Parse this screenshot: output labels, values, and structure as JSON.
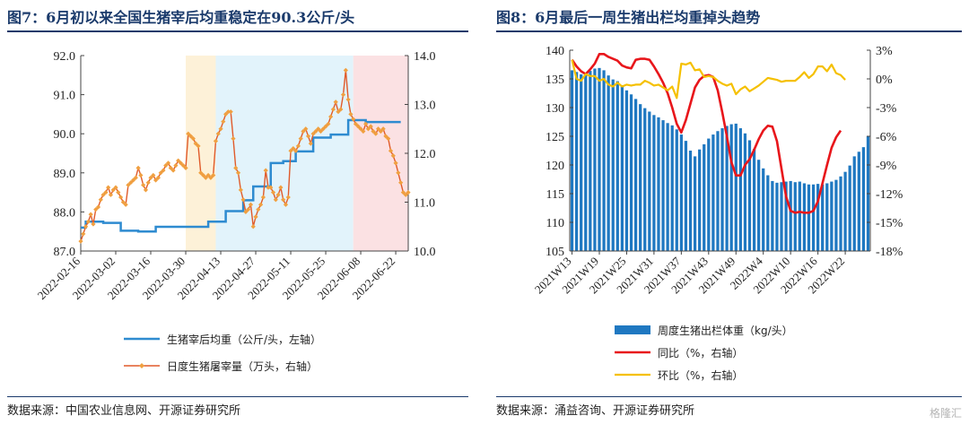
{
  "left": {
    "title": "图7：6月初以来全国生猪宰后均重稳定在90.3公斤/头",
    "source": "数据来源：中国农业信息网、开源证券研究所"
  },
  "right": {
    "title": "图8：6月最后一周生猪出栏均重掉头趋势",
    "source": "数据来源：涌益咨询、开源证券研究所",
    "watermark": "格隆汇"
  },
  "chart_data": [
    {
      "type": "line",
      "title": "图7：6月初以来全国生猪宰后均重稳定在90.3公斤/头",
      "xlabel": "",
      "x_ticks": [
        "2022-02-16",
        "2022-03-02",
        "2022-03-16",
        "2022-03-30",
        "2022-04-13",
        "2022-04-27",
        "2022-05-11",
        "2022-05-25",
        "2022-06-08",
        "2022-06-22"
      ],
      "x_range_days": [
        0,
        131
      ],
      "y_left": {
        "min": 87.0,
        "max": 92.0,
        "ticks": [
          "87.0",
          "88.0",
          "89.0",
          "90.0",
          "91.0",
          "92.0"
        ]
      },
      "y_right": {
        "min": 10.0,
        "max": 14.0,
        "ticks": [
          "10.0",
          "11.0",
          "12.0",
          "13.0",
          "14.0"
        ]
      },
      "bands": [
        {
          "from": "2022-03-30",
          "to": "2022-04-11",
          "color": "#fdf1d8"
        },
        {
          "from": "2022-04-11",
          "to": "2022-06-05",
          "color": "#e2f3fb"
        },
        {
          "from": "2022-06-05",
          "to": "2022-06-27",
          "color": "#fbe1e3"
        }
      ],
      "series": [
        {
          "name": "生猪宰后均重（公斤/头，左轴）",
          "axis": "left",
          "color": "#2e8bd0",
          "step": true,
          "points": [
            [
              "2022-02-16",
              87.6
            ],
            [
              "2022-02-18",
              87.75
            ],
            [
              "2022-02-25",
              87.72
            ],
            [
              "2022-03-04",
              87.52
            ],
            [
              "2022-03-11",
              87.5
            ],
            [
              "2022-03-18",
              87.62
            ],
            [
              "2022-03-25",
              87.62
            ],
            [
              "2022-04-01",
              87.62
            ],
            [
              "2022-04-08",
              87.75
            ],
            [
              "2022-04-15",
              88.02
            ],
            [
              "2022-04-22",
              88.3
            ],
            [
              "2022-04-26",
              88.65
            ],
            [
              "2022-05-03",
              89.25
            ],
            [
              "2022-05-08",
              89.3
            ],
            [
              "2022-05-13",
              89.55
            ],
            [
              "2022-05-20",
              89.9
            ],
            [
              "2022-05-27",
              89.98
            ],
            [
              "2022-06-03",
              90.35
            ],
            [
              "2022-06-10",
              90.3
            ],
            [
              "2022-06-24",
              90.3
            ]
          ]
        },
        {
          "name": "日度生猪屠宰量（万头，右轴）",
          "axis": "right",
          "color": "#e05a2a",
          "marker": "#f0a040",
          "points": [
            [
              "2022-02-16",
              10.2
            ],
            [
              "2022-02-17",
              10.35
            ],
            [
              "2022-02-18",
              10.5
            ],
            [
              "2022-02-19",
              10.6
            ],
            [
              "2022-02-20",
              10.75
            ],
            [
              "2022-02-21",
              10.55
            ],
            [
              "2022-02-22",
              10.85
            ],
            [
              "2022-02-23",
              10.9
            ],
            [
              "2022-02-24",
              11.05
            ],
            [
              "2022-02-25",
              11.15
            ],
            [
              "2022-02-26",
              11.2
            ],
            [
              "2022-02-27",
              11.3
            ],
            [
              "2022-02-28",
              11.15
            ],
            [
              "2022-03-01",
              11.25
            ],
            [
              "2022-03-02",
              11.3
            ],
            [
              "2022-03-03",
              11.2
            ],
            [
              "2022-03-04",
              11.1
            ],
            [
              "2022-03-05",
              11.0
            ],
            [
              "2022-03-06",
              10.95
            ],
            [
              "2022-03-07",
              11.35
            ],
            [
              "2022-03-08",
              11.4
            ],
            [
              "2022-03-09",
              11.45
            ],
            [
              "2022-03-10",
              11.5
            ],
            [
              "2022-03-11",
              11.7
            ],
            [
              "2022-03-12",
              11.55
            ],
            [
              "2022-03-13",
              11.35
            ],
            [
              "2022-03-14",
              11.25
            ],
            [
              "2022-03-15",
              11.4
            ],
            [
              "2022-03-16",
              11.5
            ],
            [
              "2022-03-17",
              11.55
            ],
            [
              "2022-03-18",
              11.45
            ],
            [
              "2022-03-19",
              11.5
            ],
            [
              "2022-03-20",
              11.6
            ],
            [
              "2022-03-21",
              11.65
            ],
            [
              "2022-03-22",
              11.75
            ],
            [
              "2022-03-23",
              11.8
            ],
            [
              "2022-03-24",
              11.7
            ],
            [
              "2022-03-25",
              11.65
            ],
            [
              "2022-03-26",
              11.75
            ],
            [
              "2022-03-27",
              11.85
            ],
            [
              "2022-03-28",
              11.8
            ],
            [
              "2022-03-29",
              11.75
            ],
            [
              "2022-03-30",
              11.7
            ],
            [
              "2022-03-31",
              12.4
            ],
            [
              "2022-04-01",
              12.35
            ],
            [
              "2022-04-02",
              12.3
            ],
            [
              "2022-04-03",
              12.2
            ],
            [
              "2022-04-04",
              12.15
            ],
            [
              "2022-04-05",
              11.6
            ],
            [
              "2022-04-06",
              11.55
            ],
            [
              "2022-04-07",
              11.5
            ],
            [
              "2022-04-08",
              11.55
            ],
            [
              "2022-04-09",
              11.5
            ],
            [
              "2022-04-10",
              11.55
            ],
            [
              "2022-04-11",
              12.25
            ],
            [
              "2022-04-12",
              12.4
            ],
            [
              "2022-04-13",
              12.5
            ],
            [
              "2022-04-14",
              12.65
            ],
            [
              "2022-04-15",
              12.8
            ],
            [
              "2022-04-16",
              12.85
            ],
            [
              "2022-04-17",
              12.85
            ],
            [
              "2022-04-18",
              12.3
            ],
            [
              "2022-04-19",
              11.7
            ],
            [
              "2022-04-20",
              11.6
            ],
            [
              "2022-04-21",
              11.25
            ],
            [
              "2022-04-22",
              11.05
            ],
            [
              "2022-04-23",
              10.8
            ],
            [
              "2022-04-24",
              10.85
            ],
            [
              "2022-04-25",
              10.95
            ],
            [
              "2022-04-26",
              10.5
            ],
            [
              "2022-04-27",
              10.7
            ],
            [
              "2022-04-28",
              10.85
            ],
            [
              "2022-04-29",
              10.95
            ],
            [
              "2022-04-30",
              11.1
            ],
            [
              "2022-05-01",
              11.65
            ],
            [
              "2022-05-02",
              11.3
            ],
            [
              "2022-05-03",
              11.3
            ],
            [
              "2022-05-04",
              11.2
            ],
            [
              "2022-05-05",
              11.05
            ],
            [
              "2022-05-06",
              11.15
            ],
            [
              "2022-05-07",
              11.3
            ],
            [
              "2022-05-08",
              11.05
            ],
            [
              "2022-05-09",
              10.95
            ],
            [
              "2022-05-10",
              11.1
            ],
            [
              "2022-05-11",
              12.05
            ],
            [
              "2022-05-12",
              12.1
            ],
            [
              "2022-05-13",
              12.05
            ],
            [
              "2022-05-14",
              12.15
            ],
            [
              "2022-05-15",
              12.3
            ],
            [
              "2022-05-16",
              12.45
            ],
            [
              "2022-05-17",
              12.5
            ],
            [
              "2022-05-18",
              12.35
            ],
            [
              "2022-05-19",
              12.2
            ],
            [
              "2022-05-20",
              12.4
            ],
            [
              "2022-05-21",
              12.45
            ],
            [
              "2022-05-22",
              12.5
            ],
            [
              "2022-05-23",
              12.45
            ],
            [
              "2022-05-24",
              12.5
            ],
            [
              "2022-05-25",
              12.55
            ],
            [
              "2022-05-26",
              12.6
            ],
            [
              "2022-05-27",
              12.75
            ],
            [
              "2022-05-28",
              12.9
            ],
            [
              "2022-05-29",
              13.05
            ],
            [
              "2022-05-30",
              12.85
            ],
            [
              "2022-05-31",
              12.9
            ],
            [
              "2022-06-01",
              13.2
            ],
            [
              "2022-06-02",
              13.7
            ],
            [
              "2022-06-03",
              13.1
            ],
            [
              "2022-06-04",
              12.8
            ],
            [
              "2022-06-05",
              12.7
            ],
            [
              "2022-06-06",
              12.6
            ],
            [
              "2022-06-07",
              12.55
            ],
            [
              "2022-06-08",
              12.5
            ],
            [
              "2022-06-09",
              12.45
            ],
            [
              "2022-06-10",
              12.6
            ],
            [
              "2022-06-11",
              12.5
            ],
            [
              "2022-06-12",
              12.55
            ],
            [
              "2022-06-13",
              12.45
            ],
            [
              "2022-06-14",
              12.4
            ],
            [
              "2022-06-15",
              12.5
            ],
            [
              "2022-06-16",
              12.45
            ],
            [
              "2022-06-17",
              12.5
            ],
            [
              "2022-06-18",
              12.35
            ],
            [
              "2022-06-19",
              12.3
            ],
            [
              "2022-06-20",
              12.05
            ],
            [
              "2022-06-21",
              11.95
            ],
            [
              "2022-06-22",
              11.8
            ],
            [
              "2022-06-23",
              11.6
            ],
            [
              "2022-06-24",
              11.4
            ],
            [
              "2022-06-25",
              11.2
            ],
            [
              "2022-06-26",
              11.15
            ],
            [
              "2022-06-27",
              11.2
            ]
          ]
        }
      ],
      "legend": [
        "生猪宰后均重（公斤/头，左轴）",
        "日度生猪屠宰量（万头，右轴）"
      ],
      "legend_position": "bottom"
    },
    {
      "type": "bar",
      "title": "图8：6月最后一周生猪出栏均重掉头趋势",
      "x_ticks": [
        "2021W13",
        "2021W19",
        "2021W25",
        "2021W31",
        "2021W37",
        "2021W43",
        "2021W49",
        "2022W4",
        "2022W10",
        "2022W16",
        "2022W22"
      ],
      "y_left": {
        "min": 105,
        "max": 140,
        "ticks": [
          "105",
          "110",
          "115",
          "120",
          "125",
          "130",
          "135",
          "140"
        ]
      },
      "y_right": {
        "min": -18,
        "max": 3,
        "ticks": [
          "3%",
          "0%",
          "-3%",
          "-6%",
          "-9%",
          "-12%",
          "-15%",
          "-18%"
        ]
      },
      "categories_count": 66,
      "series": [
        {
          "name": "周度生猪出栏体重（kg/头）",
          "type": "bar",
          "axis": "left",
          "color": "#1f78c1",
          "values": [
            136.5,
            136.2,
            135.8,
            136.0,
            136.4,
            136.8,
            136.9,
            136.5,
            135.6,
            134.9,
            134.6,
            133.9,
            133.0,
            132.3,
            131.5,
            130.6,
            129.9,
            129.3,
            128.7,
            128.3,
            127.8,
            127.3,
            126.9,
            126.2,
            125.3,
            124.2,
            122.5,
            121.5,
            122.7,
            123.6,
            124.6,
            125.3,
            125.9,
            126.4,
            126.8,
            127.1,
            127.2,
            126.4,
            125.5,
            124.3,
            122.8,
            120.9,
            119.4,
            118.2,
            117.2,
            116.9,
            117.0,
            117.1,
            117.2,
            117.0,
            117.1,
            116.8,
            116.6,
            116.6,
            116.7,
            116.6,
            116.8,
            117.1,
            117.4,
            118.0,
            118.8,
            119.9,
            121.5,
            122.3,
            123.1,
            125.0
          ]
        },
        {
          "name": "同比（%，右轴）",
          "type": "line",
          "axis": "right",
          "color": "#e8161b",
          "values": [
            2.0,
            1.3,
            0.8,
            0.5,
            1.0,
            1.6,
            2.6,
            2.6,
            2.3,
            2.1,
            1.9,
            1.4,
            1.2,
            1.1,
            2.0,
            2.1,
            2.1,
            2.0,
            1.3,
            0.5,
            -0.4,
            -1.5,
            -3.0,
            -4.7,
            -5.6,
            -4.3,
            -2.6,
            -0.9,
            -0.1,
            0.3,
            0.4,
            0.2,
            -1.2,
            -3.5,
            -6.0,
            -8.7,
            -10.1,
            -10.1,
            -9.0,
            -8.4,
            -7.4,
            -6.3,
            -5.4,
            -4.9,
            -5.0,
            -6.5,
            -9.4,
            -12.3,
            -13.8,
            -14.0,
            -13.9,
            -14.0,
            -14.0,
            -13.8,
            -12.8,
            -10.9,
            -9.0,
            -7.2,
            -6.1,
            -5.4
          ]
        },
        {
          "name": "环比（%，右轴）",
          "type": "line",
          "axis": "right",
          "color": "#f5c000",
          "values": [
            2.0,
            0.0,
            -0.2,
            0.5,
            0.3,
            0.3,
            -0.2,
            0.0,
            -0.6,
            -0.8,
            -0.4,
            -0.8,
            -0.6,
            -0.7,
            -0.6,
            -0.6,
            -0.2,
            -0.4,
            -0.7,
            -0.6,
            -0.9,
            -1.2,
            -0.8,
            -2.0,
            1.6,
            1.5,
            1.7,
            0.9,
            1.0,
            0.2,
            0.3,
            0.2,
            -0.2,
            -0.5,
            -0.7,
            -0.5,
            -1.6,
            -1.1,
            -0.8,
            -1.3,
            -1.0,
            -0.7,
            -0.3,
            0.1,
            0.0,
            -0.1,
            -0.3,
            -0.2,
            -0.2,
            -0.2,
            0.2,
            0.7,
            0.1,
            0.5,
            1.3,
            1.3,
            0.8,
            1.5,
            0.6,
            0.4,
            -0.1
          ]
        }
      ],
      "legend": [
        "周度生猪出栏体重（kg/头）",
        "同比（%，右轴）",
        "环比（%，右轴）"
      ],
      "legend_position": "bottom"
    }
  ]
}
